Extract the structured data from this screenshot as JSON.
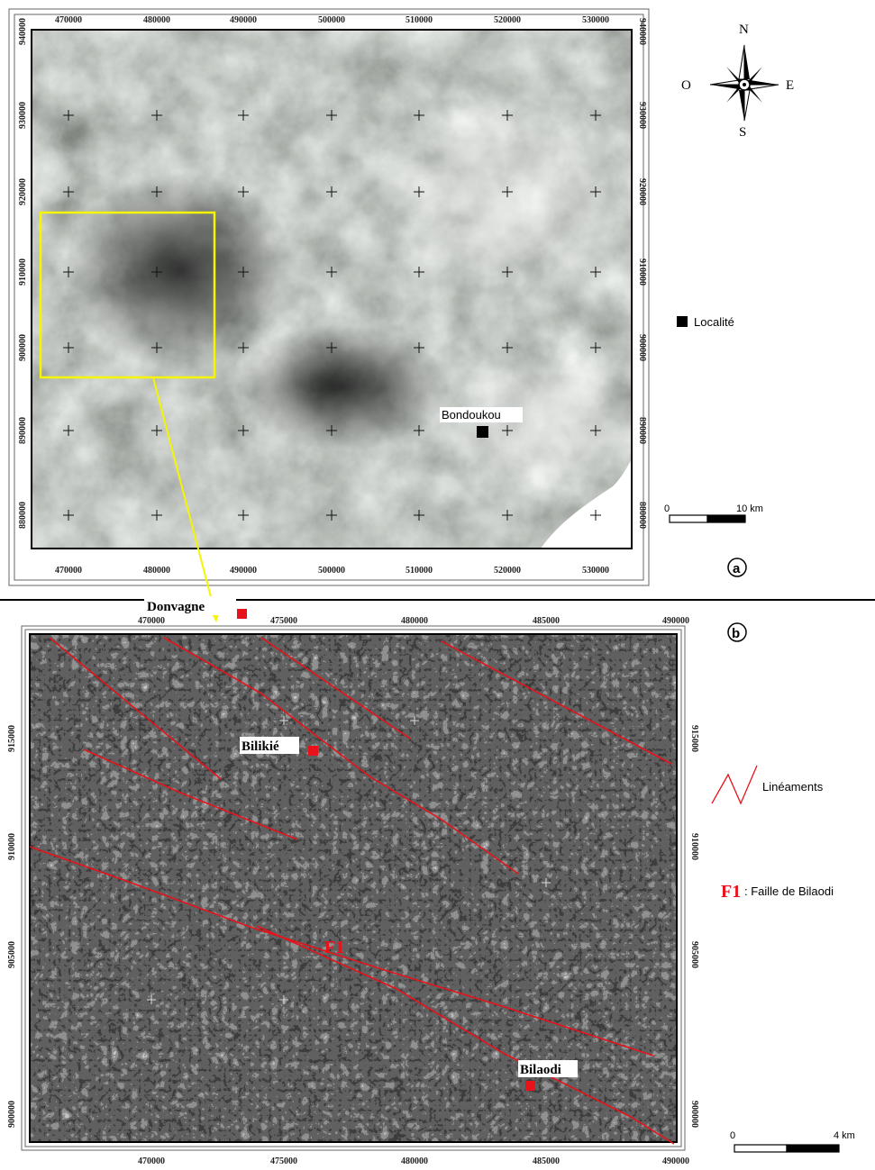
{
  "panel_a": {
    "label": "a",
    "x_ticks": [
      "470000",
      "480000",
      "490000",
      "500000",
      "510000",
      "520000",
      "530000"
    ],
    "y_ticks": [
      "940000",
      "930000",
      "920000",
      "910000",
      "900000",
      "890000",
      "880000"
    ],
    "compass": {
      "north": "N",
      "south": "S",
      "east": "E",
      "west": "O"
    },
    "legend_locality": "Localité",
    "locality_name": "Bondoukou",
    "scale": {
      "start": "0",
      "end": "10 km"
    },
    "highlight_color": "#f5f500"
  },
  "panel_b": {
    "label": "b",
    "x_ticks": [
      "470000",
      "475000",
      "480000",
      "485000",
      "490000"
    ],
    "y_ticks": [
      "915000",
      "910000",
      "905000",
      "900000"
    ],
    "legend_lineaments": "Linéaments",
    "legend_fault_code": "F1",
    "legend_fault_text": ": Faille de Bilaodi",
    "fault_label": "F1",
    "localities": [
      "Bilikié",
      "Donvagne",
      "Bilaodi"
    ],
    "scale": {
      "start": "0",
      "end": "4 km"
    },
    "lineament_color": "#e8121b"
  }
}
